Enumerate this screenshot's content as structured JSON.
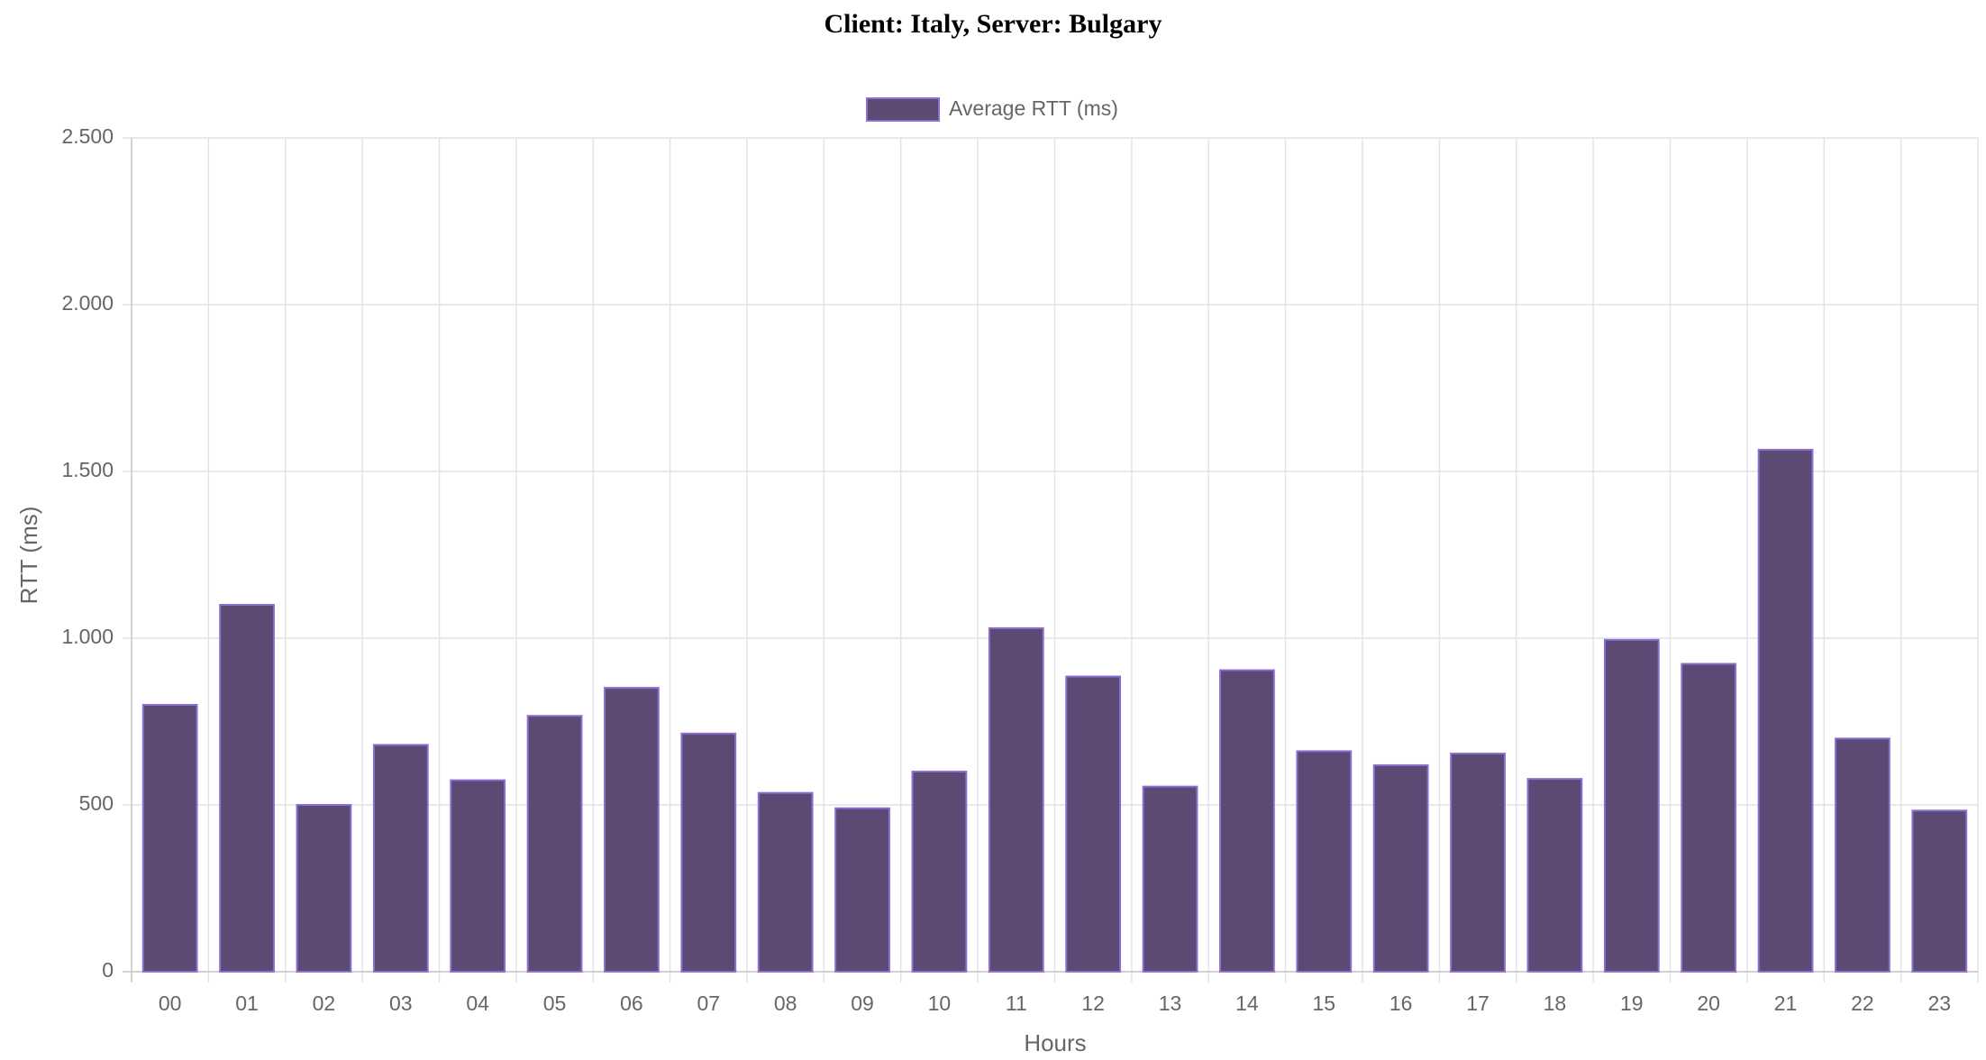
{
  "chart_data": {
    "type": "bar",
    "title": "Client: Italy, Server: Bulgary",
    "x_label": "Hours",
    "y_label": "RTT (ms)",
    "categories": [
      "00",
      "01",
      "02",
      "03",
      "04",
      "05",
      "06",
      "07",
      "08",
      "09",
      "10",
      "11",
      "12",
      "13",
      "14",
      "15",
      "16",
      "17",
      "18",
      "19",
      "20",
      "21",
      "22",
      "23"
    ],
    "series": [
      {
        "name": "Average RTT (ms)",
        "color": "#5d4a74",
        "border_color": "#8b6fd1",
        "values": [
          800,
          1100,
          500,
          680,
          574,
          767,
          851,
          714,
          536,
          490,
          600,
          1030,
          885,
          555,
          904,
          661,
          619,
          654,
          578,
          995,
          923,
          1565,
          699,
          483
        ]
      }
    ],
    "ylim": [
      0,
      2500
    ],
    "yticks": [
      0,
      500,
      {
        "value": 1000,
        "label": "1.000"
      },
      {
        "value": 1500,
        "label": "1.500"
      },
      {
        "value": 2000,
        "label": "2.000"
      },
      {
        "value": 2500,
        "label": "2.500"
      }
    ],
    "grid": true,
    "legend": "top"
  }
}
